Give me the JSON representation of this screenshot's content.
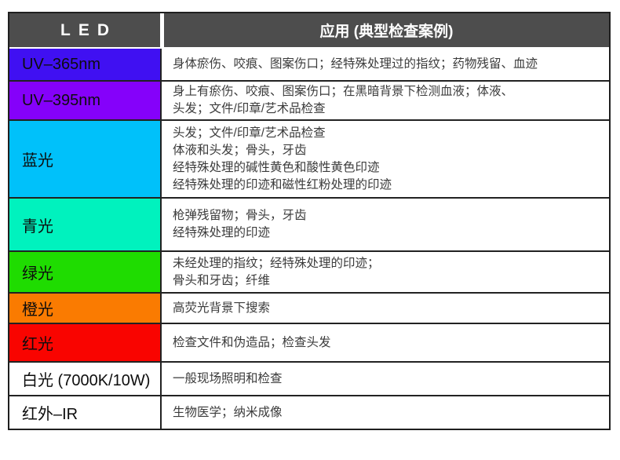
{
  "colors": {
    "header_bg": "#4d4d4d",
    "header_text": "#ffffff",
    "border": "#1f1f1f",
    "body_text": "#3b3b3b",
    "label_text": "#0d0d0d"
  },
  "table": {
    "headers": [
      "LED",
      "应用 (典型检查案例)"
    ],
    "rows": [
      {
        "led": "UV–365nm",
        "color": "#4010f2",
        "applications": [
          "身体瘀伤、咬痕、图案伤口；经特殊处理过的指纹；药物残留、血迹"
        ]
      },
      {
        "led": "UV–395nm",
        "color": "#8501fa",
        "applications": [
          "身上有瘀伤、咬痕、图案伤口；在黑暗背景下检测血液；体液、",
          "头发；文件/印章/艺术品检查"
        ]
      },
      {
        "led": "蓝光",
        "color": "#00c1fa",
        "applications": [
          "头发；文件/印章/艺术品检查",
          "体液和头发；骨头，牙齿",
          "经特殊处理的碱性黄色和酸性黄色印迹",
          "经特殊处理的印迹和磁性红粉处理的印迹"
        ]
      },
      {
        "led": "青光",
        "color": "#00f2be",
        "applications": [
          "枪弹残留物；骨头，牙齿",
          "经特殊处理的印迹"
        ]
      },
      {
        "led": "绿光",
        "color": "#1fdc01",
        "applications": [
          "未经处理的指纹；经特殊处理的印迹；",
          "骨头和牙齿；纤维"
        ]
      },
      {
        "led": "橙光",
        "color": "#fa7b01",
        "applications": [
          "高荧光背景下搜索"
        ]
      },
      {
        "led": "红光",
        "color": "#f90400",
        "applications": [
          "检查文件和伪造品；检查头发"
        ]
      },
      {
        "led": "白光 (7000K/10W)",
        "color": "#ffffff",
        "applications": [
          "一般现场照明和检查"
        ]
      },
      {
        "led": "红外–IR",
        "color": "#ffffff",
        "applications": [
          "生物医学；纳米成像"
        ]
      }
    ]
  }
}
